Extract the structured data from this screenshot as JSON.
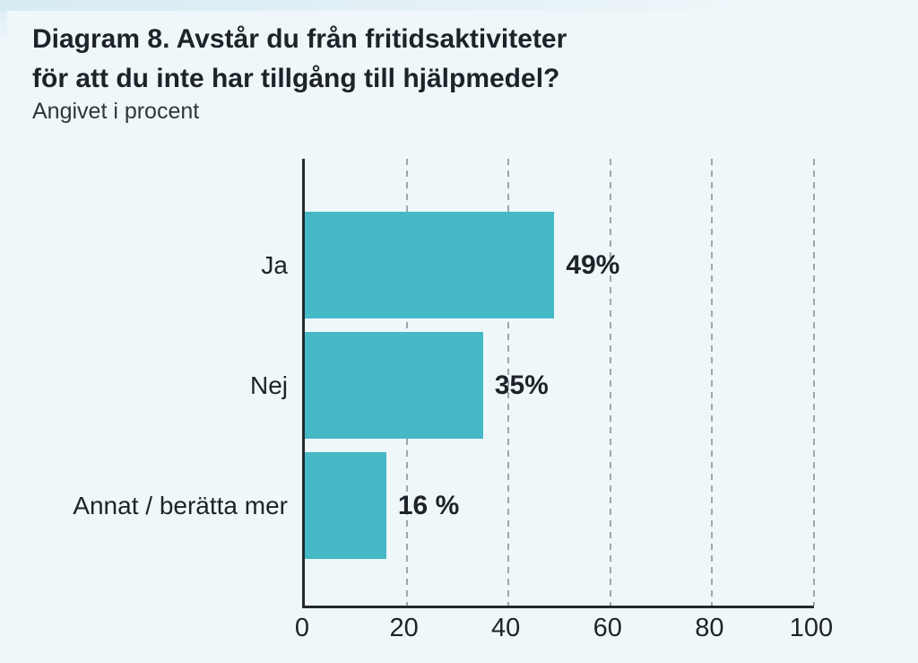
{
  "page": {
    "title_lines": [
      "Diagram 8. Avstår du från fritidsaktiviteter",
      "för att du inte har tillgång till hjälpmedel?"
    ],
    "subtitle": "Angivet i procent"
  },
  "colors": {
    "background": "#eff7fa",
    "bar": "#45b9c6",
    "axis": "#24292e",
    "gridline": "#9fa6aa",
    "text": "#1d2328",
    "top_edge": "#d7ebf3"
  },
  "chart_data": {
    "type": "bar",
    "orientation": "horizontal",
    "title": "Diagram 8. Avstår du från fritidsaktiviteter för att du inte har tillgång till hjälpmedel?",
    "subtitle": "Angivet i procent",
    "categories": [
      "Ja",
      "Nej",
      "Annat / berätta mer"
    ],
    "values": [
      49,
      35,
      16
    ],
    "value_labels": [
      "49%",
      "35%",
      "16 %"
    ],
    "xlabel": "",
    "ylabel": "",
    "xlim": [
      0,
      100
    ],
    "xticks": [
      0,
      20,
      40,
      60,
      80,
      100
    ],
    "xtick_labels": [
      "0",
      "20",
      "40",
      "60",
      "80",
      "100"
    ],
    "grid": "dashed-vertical",
    "legend": "none"
  }
}
